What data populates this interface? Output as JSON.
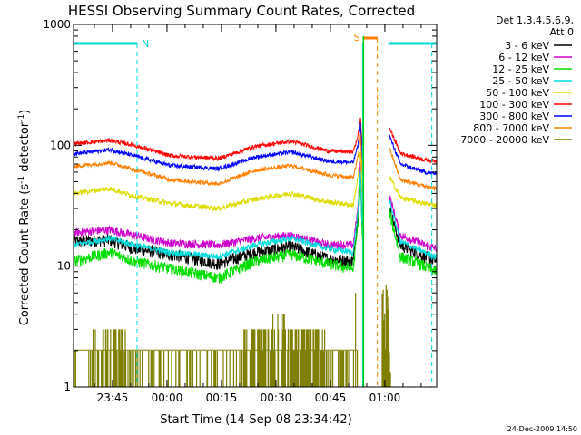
{
  "chart_data": {
    "type": "line",
    "title": "HESSI Observing Summary Count Rates, Corrected",
    "xlabel": "Start Time (14-Sep-08 23:34:42)",
    "ylabel_main": "Corrected Count Rate (s",
    "ylabel_sup1": "-1",
    "ylabel_mid": " detector",
    "ylabel_sup2": "-1",
    "ylabel_end": ")",
    "x_ticks": [
      {
        "label": "23:45",
        "t": 644
      },
      {
        "label": "00:00",
        "t": 1544
      },
      {
        "label": "00:15",
        "t": 2444
      },
      {
        "label": "00:30",
        "t": 3344
      },
      {
        "label": "00:45",
        "t": 4244
      },
      {
        "label": "01:00",
        "t": 5144
      }
    ],
    "y_ticks": [
      {
        "label": "1",
        "v": 1
      },
      {
        "label": "10",
        "v": 10
      },
      {
        "label": "100",
        "v": 100
      },
      {
        "label": "1000",
        "v": 1000
      }
    ],
    "xlim_seconds": [
      0,
      6000
    ],
    "ylim": [
      1,
      1000
    ],
    "y_scale": "log",
    "legend_header": [
      "Det 1,3,4,5,6,9,",
      "Att 0"
    ],
    "series": [
      {
        "name": "3 - 6 keV",
        "color": "#000000",
        "base": [
          [
            0,
            16
          ],
          [
            600,
            16.5
          ],
          [
            1000,
            14
          ],
          [
            1600,
            12.5
          ],
          [
            2400,
            10.5
          ],
          [
            3000,
            13
          ],
          [
            3600,
            14.5
          ],
          [
            4200,
            11.5
          ],
          [
            4620,
            11
          ],
          [
            4700,
            26
          ],
          [
            4740,
            60
          ],
          [
            4770,
            20
          ]
        ],
        "post": [
          [
            5220,
            30
          ],
          [
            5400,
            15
          ],
          [
            5800,
            12
          ],
          [
            6000,
            11
          ]
        ],
        "noise": 0.12
      },
      {
        "name": "6 - 12 keV",
        "color": "#cc00cc",
        "base": [
          [
            0,
            19
          ],
          [
            600,
            20
          ],
          [
            1000,
            18
          ],
          [
            1600,
            15.5
          ],
          [
            2400,
            15
          ],
          [
            3000,
            17
          ],
          [
            3600,
            18
          ],
          [
            4200,
            15
          ],
          [
            4620,
            15
          ],
          [
            4700,
            30
          ],
          [
            4740,
            70
          ],
          [
            4770,
            25
          ]
        ],
        "post": [
          [
            5220,
            38
          ],
          [
            5400,
            18
          ],
          [
            5800,
            15
          ],
          [
            6000,
            14
          ]
        ],
        "noise": 0.08
      },
      {
        "name": "12 - 25 keV",
        "color": "#00dd00",
        "base": [
          [
            0,
            11
          ],
          [
            600,
            13
          ],
          [
            1000,
            11
          ],
          [
            1600,
            9.5
          ],
          [
            2400,
            8
          ],
          [
            3000,
            11
          ],
          [
            3600,
            12.5
          ],
          [
            4200,
            10.5
          ],
          [
            4620,
            9.5
          ],
          [
            4700,
            22
          ],
          [
            4740,
            50
          ],
          [
            4770,
            18
          ]
        ],
        "post": [
          [
            5220,
            28
          ],
          [
            5400,
            12
          ],
          [
            5800,
            10
          ],
          [
            6000,
            9
          ]
        ],
        "noise": 0.11
      },
      {
        "name": "25 - 50 keV",
        "color": "#00dddd",
        "base": [
          [
            0,
            15
          ],
          [
            600,
            17
          ],
          [
            1000,
            15
          ],
          [
            1600,
            13
          ],
          [
            2400,
            12
          ],
          [
            3000,
            15
          ],
          [
            3600,
            17
          ],
          [
            4200,
            14
          ],
          [
            4620,
            13
          ],
          [
            4700,
            28
          ],
          [
            4740,
            60
          ],
          [
            4770,
            22
          ]
        ],
        "post": [
          [
            5220,
            35
          ],
          [
            5400,
            16
          ],
          [
            5800,
            13
          ],
          [
            6000,
            12
          ]
        ],
        "noise": 0.06
      },
      {
        "name": "50 - 100 keV",
        "color": "#dddd00",
        "base": [
          [
            0,
            40
          ],
          [
            600,
            44
          ],
          [
            1000,
            38
          ],
          [
            1600,
            33
          ],
          [
            2400,
            30
          ],
          [
            3000,
            36
          ],
          [
            3600,
            40
          ],
          [
            4200,
            34
          ],
          [
            4620,
            32
          ],
          [
            4700,
            55
          ],
          [
            4740,
            90
          ],
          [
            4770,
            40
          ]
        ],
        "post": [
          [
            5220,
            55
          ],
          [
            5400,
            37
          ],
          [
            5800,
            33
          ],
          [
            6000,
            32
          ]
        ],
        "noise": 0.05
      },
      {
        "name": "100 - 300 keV",
        "color": "#ff0000",
        "base": [
          [
            0,
            103
          ],
          [
            600,
            110
          ],
          [
            1000,
            100
          ],
          [
            1600,
            82
          ],
          [
            2400,
            78
          ],
          [
            3000,
            98
          ],
          [
            3600,
            108
          ],
          [
            4200,
            90
          ],
          [
            4620,
            88
          ],
          [
            4700,
            120
          ],
          [
            4740,
            170
          ],
          [
            4770,
            100
          ]
        ],
        "post": [
          [
            5220,
            140
          ],
          [
            5400,
            86
          ],
          [
            5800,
            76
          ],
          [
            6000,
            74
          ]
        ],
        "noise": 0.04
      },
      {
        "name": "300 - 800 keV",
        "color": "#0000ff",
        "base": [
          [
            0,
            85
          ],
          [
            600,
            92
          ],
          [
            1000,
            82
          ],
          [
            1600,
            68
          ],
          [
            2400,
            64
          ],
          [
            3000,
            80
          ],
          [
            3600,
            88
          ],
          [
            4200,
            74
          ],
          [
            4620,
            72
          ],
          [
            4700,
            100
          ],
          [
            4740,
            150
          ],
          [
            4770,
            80
          ]
        ],
        "post": [
          [
            5220,
            120
          ],
          [
            5400,
            70
          ],
          [
            5800,
            60
          ],
          [
            6000,
            58
          ]
        ],
        "noise": 0.04
      },
      {
        "name": "800 - 7000 keV",
        "color": "#ff8000",
        "base": [
          [
            0,
            67
          ],
          [
            600,
            72
          ],
          [
            1000,
            63
          ],
          [
            1600,
            52
          ],
          [
            2400,
            48
          ],
          [
            3000,
            62
          ],
          [
            3600,
            68
          ],
          [
            4200,
            57
          ],
          [
            4620,
            54
          ],
          [
            4700,
            80
          ],
          [
            4740,
            120
          ],
          [
            4770,
            60
          ]
        ],
        "post": [
          [
            5220,
            95
          ],
          [
            5400,
            52
          ],
          [
            5800,
            46
          ],
          [
            6000,
            44
          ]
        ],
        "noise": 0.04
      },
      {
        "name": "7000 - 20000 keV",
        "color": "#808000",
        "noise": 0,
        "low": true
      }
    ],
    "annotations": [
      {
        "text": "N",
        "color": "#00cccc"
      },
      {
        "text": "S",
        "color": "#ff8000"
      }
    ]
  },
  "footer_date": "24-Dec-2009 14:50"
}
